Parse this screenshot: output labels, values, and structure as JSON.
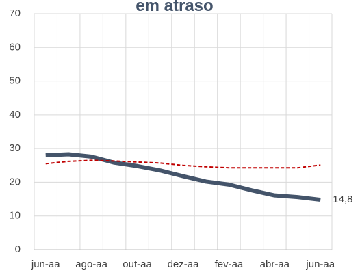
{
  "chart_data": {
    "type": "line",
    "title": "em atraso",
    "categories": [
      "jun-aa",
      null,
      "ago-aa",
      null,
      "out-aa",
      null,
      "dez-aa",
      null,
      "fev-aa",
      null,
      "abr-aa",
      null,
      "jun-aa"
    ],
    "series": [
      {
        "color": "#44546a",
        "values": [
          28,
          28.3,
          27.6,
          25.8,
          24.8,
          23.5,
          21.8,
          20.2,
          19.3,
          17.6,
          16.1,
          15.6,
          14.8
        ],
        "value_labels": [
          null,
          null,
          null,
          null,
          null,
          null,
          null,
          null,
          null,
          null,
          null,
          null,
          "14,8"
        ]
      },
      {
        "color": "#c00000",
        "dashed": true,
        "values": [
          25.5,
          26.2,
          26.5,
          26.3,
          26.0,
          25.7,
          25.0,
          24.6,
          24.3,
          24.3,
          24.3,
          24.3,
          25.1
        ]
      }
    ],
    "ylim": [
      0,
      70
    ],
    "yticks": [
      0,
      10,
      20,
      30,
      40,
      50,
      60,
      70
    ],
    "grid": true
  }
}
